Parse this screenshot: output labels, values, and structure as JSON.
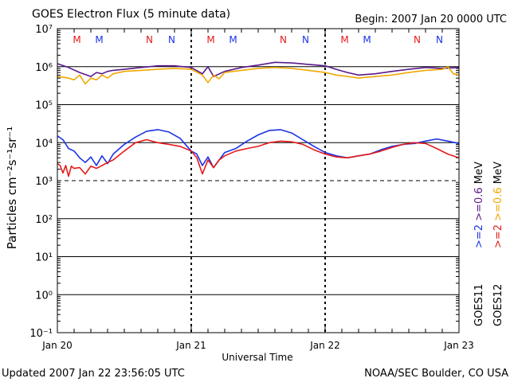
{
  "title": "GOES Electron Flux (5 minute data)",
  "begin_label": "Begin: 2007 Jan 20 0000 UTC",
  "updated_label": "Updated 2007 Jan 22 23:56:05 UTC",
  "credit_label": "NOAA/SEC Boulder, CO USA",
  "colors": {
    "goes11_2mev": "#1a33e6",
    "goes12_2mev": "#e61a1a",
    "goes11_06mev": "#5a1a8a",
    "goes12_06mev": "#f0a800",
    "marker_m": "#e61a1a",
    "marker_n": "#1a33e6"
  },
  "chart_data": {
    "type": "line",
    "y_scale": "log",
    "xlabel": "Universal Time",
    "ylabel": "Particles cm⁻²s⁻¹sr⁻¹",
    "xlim": [
      "2007-01-20 00:00",
      "2007-01-23 00:00"
    ],
    "ylim": [
      0.1,
      10000000
    ],
    "x_tick_labels": [
      "Jan 20",
      "Jan 21",
      "Jan 22",
      "Jan 23"
    ],
    "y_tick_labels": [
      "10⁻¹",
      "10⁰",
      "10¹",
      "10²",
      "10³",
      "10⁴",
      "10⁵",
      "10⁶",
      "10⁷"
    ],
    "threshold_flux": 1000,
    "day_markers": [
      {
        "label": "M",
        "color": "#e61a1a",
        "time": "2007-01-20 03:30"
      },
      {
        "label": "M",
        "color": "#1a33e6",
        "time": "2007-01-20 07:30"
      },
      {
        "label": "N",
        "color": "#e61a1a",
        "time": "2007-01-20 16:30"
      },
      {
        "label": "N",
        "color": "#1a33e6",
        "time": "2007-01-20 20:30"
      },
      {
        "label": "M",
        "color": "#e61a1a",
        "time": "2007-01-21 03:30"
      },
      {
        "label": "M",
        "color": "#1a33e6",
        "time": "2007-01-21 07:30"
      },
      {
        "label": "N",
        "color": "#e61a1a",
        "time": "2007-01-21 16:30"
      },
      {
        "label": "N",
        "color": "#1a33e6",
        "time": "2007-01-21 20:30"
      },
      {
        "label": "M",
        "color": "#e61a1a",
        "time": "2007-01-22 03:30"
      },
      {
        "label": "M",
        "color": "#1a33e6",
        "time": "2007-01-22 07:30"
      },
      {
        "label": "N",
        "color": "#e61a1a",
        "time": "2007-01-22 16:30"
      },
      {
        "label": "N",
        "color": "#1a33e6",
        "time": "2007-01-22 20:30"
      }
    ],
    "legend": {
      "right_labels": [
        "GOES11",
        "GOES12"
      ],
      "entries": [
        {
          "label": ">=2",
          "color": "#1a33e6",
          "column": 0
        },
        {
          "label": ">=0.6",
          "color": "#5a1a8a",
          "column": 0
        },
        {
          "label": "MeV",
          "color": "#000000",
          "column": 0
        },
        {
          "label": ">=2",
          "color": "#e61a1a",
          "column": 1
        },
        {
          "label": ">=0.6",
          "color": "#f0a800",
          "column": 1
        },
        {
          "label": "MeV",
          "color": "#000000",
          "column": 1
        }
      ]
    },
    "series": [
      {
        "name": "GOES11 >=0.6 MeV",
        "color": "#5a1a8a",
        "hours": [
          0,
          2,
          4,
          6,
          7,
          8,
          9,
          10,
          12,
          15,
          18,
          21,
          24,
          26,
          27,
          28,
          30,
          33,
          36,
          39,
          42,
          45,
          48,
          50,
          52,
          54,
          57,
          60,
          63,
          66,
          69,
          72
        ],
        "values": [
          1200000.0,
          950000.0,
          700000.0,
          550000.0,
          700000.0,
          650000.0,
          750000.0,
          800000.0,
          850000.0,
          950000.0,
          1050000.0,
          1050000.0,
          950000.0,
          650000.0,
          1000000.0,
          550000.0,
          750000.0,
          950000.0,
          1100000.0,
          1300000.0,
          1250000.0,
          1150000.0,
          1050000.0,
          850000.0,
          700000.0,
          600000.0,
          650000.0,
          750000.0,
          850000.0,
          950000.0,
          900000.0,
          950000.0
        ]
      },
      {
        "name": "GOES12 >=0.6 MeV",
        "color": "#f0a800",
        "hours": [
          0,
          2,
          3,
          4,
          5,
          6,
          7,
          8,
          9,
          10,
          12,
          15,
          18,
          21,
          24,
          26,
          27,
          28,
          29,
          30,
          33,
          36,
          39,
          42,
          45,
          48,
          50,
          52,
          54,
          57,
          60,
          63,
          66,
          69,
          70,
          71,
          72
        ],
        "values": [
          550000.0,
          500000.0,
          450000.0,
          600000.0,
          350000.0,
          500000.0,
          450000.0,
          600000.0,
          500000.0,
          650000.0,
          750000.0,
          800000.0,
          850000.0,
          900000.0,
          850000.0,
          600000.0,
          380000.0,
          600000.0,
          480000.0,
          700000.0,
          800000.0,
          900000.0,
          950000.0,
          900000.0,
          800000.0,
          700000.0,
          600000.0,
          550000.0,
          500000.0,
          550000.0,
          600000.0,
          700000.0,
          800000.0,
          850000.0,
          1000000.0,
          650000.0,
          600000.0
        ]
      },
      {
        "name": "GOES11 >=2 MeV",
        "color": "#1a33e6",
        "hours": [
          0,
          1,
          2,
          3,
          4,
          5,
          6,
          7,
          8,
          9,
          10,
          12,
          14,
          16,
          18,
          20,
          22,
          24,
          25,
          26,
          27,
          28,
          29,
          30,
          32,
          34,
          36,
          38,
          40,
          42,
          44,
          46,
          48,
          50,
          52,
          54,
          56,
          58,
          60,
          62,
          64,
          66,
          68,
          70,
          72
        ],
        "values": [
          15000,
          12000,
          7000,
          6000,
          4000,
          3000,
          4200,
          2500,
          4500,
          2800,
          5000,
          9000,
          14000,
          20000,
          22000,
          19000,
          13000,
          6000,
          5000,
          2500,
          4200,
          2200,
          3500,
          5500,
          7000,
          11000,
          16000,
          21000,
          22000,
          18000,
          12000,
          8000,
          5500,
          4500,
          4000,
          4500,
          5000,
          6500,
          8000,
          9000,
          9500,
          11000,
          12500,
          11000,
          9500
        ]
      },
      {
        "name": "GOES12 >=2 MeV",
        "color": "#e61a1a",
        "hours": [
          0,
          0.5,
          1,
          1.5,
          2,
          2.5,
          3,
          4,
          5,
          6,
          7,
          8,
          9,
          10,
          12,
          14,
          16,
          18,
          20,
          22,
          24,
          25,
          26,
          27,
          28,
          29,
          30,
          32,
          34,
          36,
          38,
          40,
          42,
          44,
          46,
          48,
          50,
          52,
          54,
          56,
          58,
          60,
          62,
          64,
          66,
          68,
          70,
          72
        ],
        "values": [
          2800,
          2500,
          1600,
          2500,
          1300,
          2400,
          2100,
          2200,
          1500,
          2400,
          2100,
          2500,
          3000,
          3500,
          6000,
          10000,
          12000,
          10000,
          9000,
          8000,
          6000,
          4000,
          1500,
          3500,
          2200,
          3500,
          4500,
          6000,
          7000,
          8000,
          10000,
          11000,
          10500,
          9000,
          6500,
          5000,
          4200,
          4000,
          4500,
          5000,
          6000,
          7500,
          9000,
          10000,
          9500,
          7000,
          5000,
          4000
        ]
      }
    ]
  }
}
